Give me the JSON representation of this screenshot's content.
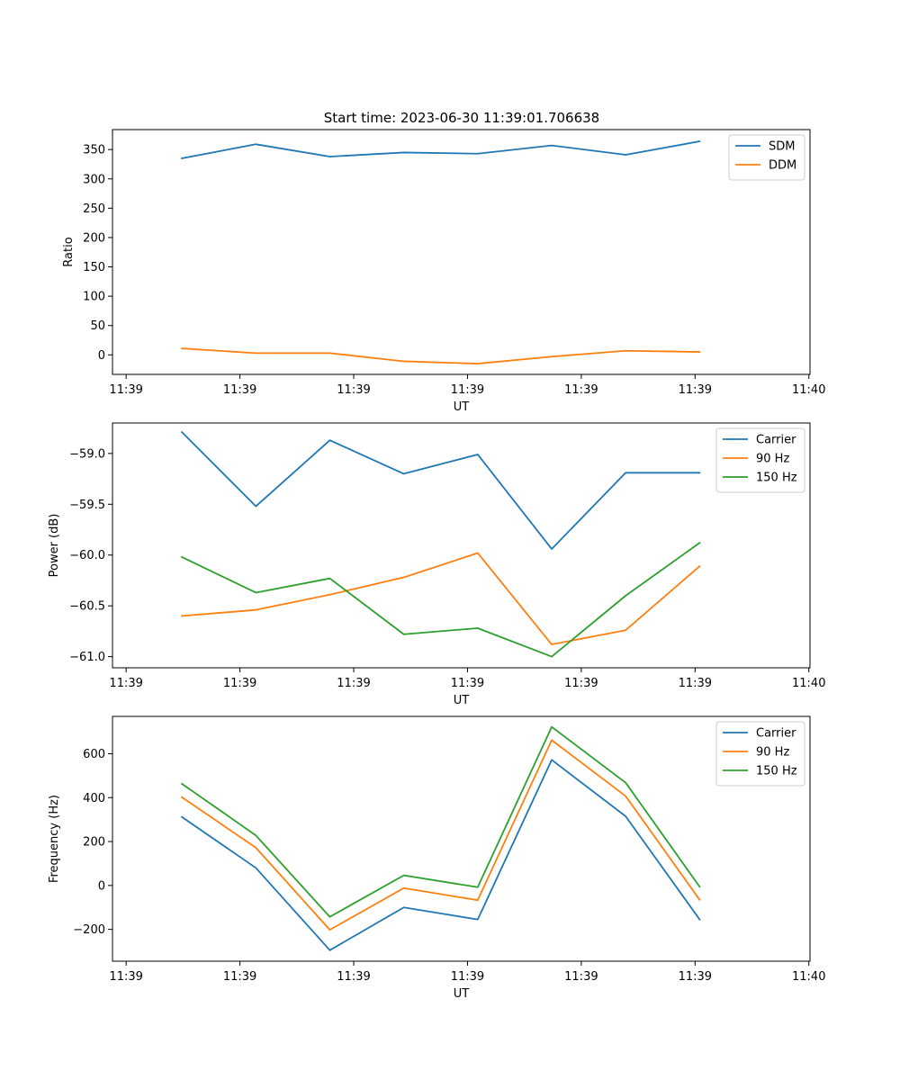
{
  "figure": {
    "title": "Start time: 2023-06-30 11:39:01.706638"
  },
  "chart_data": [
    {
      "type": "line",
      "title": "Start time: 2023-06-30 11:39:01.706638",
      "xlabel": "UT",
      "ylabel": "Ratio",
      "x_ticks": [
        {
          "s": 0,
          "label": "11:39"
        },
        {
          "s": 10,
          "label": "11:39"
        },
        {
          "s": 20,
          "label": "11:39"
        },
        {
          "s": 30,
          "label": "11:39"
        },
        {
          "s": 40,
          "label": "11:39"
        },
        {
          "s": 50,
          "label": "11:39"
        },
        {
          "s": 60,
          "label": "11:40"
        }
      ],
      "x_seconds": [
        4.9,
        11.4,
        17.9,
        24.4,
        30.9,
        37.4,
        43.9,
        50.4
      ],
      "xlim_seconds": [
        -1.2,
        60.1
      ],
      "y_ticks": [
        0,
        50,
        100,
        150,
        200,
        250,
        300,
        350
      ],
      "ylim": [
        -33.3,
        384
      ],
      "legend": "top-right",
      "series": [
        {
          "name": "SDM",
          "color": "#1f77b4",
          "values": [
            335,
            359,
            338,
            345,
            343,
            357,
            341,
            364
          ]
        },
        {
          "name": "DDM",
          "color": "#ff7f0e",
          "values": [
            11,
            3,
            3,
            -11,
            -15,
            -3,
            7,
            5
          ]
        }
      ]
    },
    {
      "type": "line",
      "xlabel": "UT",
      "ylabel": "Power (dB)",
      "x_ticks": [
        {
          "s": 0,
          "label": "11:39"
        },
        {
          "s": 10,
          "label": "11:39"
        },
        {
          "s": 20,
          "label": "11:39"
        },
        {
          "s": 30,
          "label": "11:39"
        },
        {
          "s": 40,
          "label": "11:39"
        },
        {
          "s": 50,
          "label": "11:39"
        },
        {
          "s": 60,
          "label": "11:40"
        }
      ],
      "x_seconds": [
        4.9,
        11.4,
        17.9,
        24.4,
        30.9,
        37.4,
        43.9,
        50.4
      ],
      "xlim_seconds": [
        -1.2,
        60.1
      ],
      "y_ticks": [
        -61.0,
        -60.5,
        -60.0,
        -59.5,
        -59.0
      ],
      "y_tick_labels": [
        "−61.0",
        "−60.5",
        "−60.0",
        "−59.5",
        "−59.0"
      ],
      "ylim": [
        -61.11,
        -58.7
      ],
      "legend": "top-right",
      "series": [
        {
          "name": "Carrier",
          "color": "#1f77b4",
          "values": [
            -58.79,
            -59.52,
            -58.87,
            -59.2,
            -59.01,
            -59.94,
            -59.19,
            -59.19
          ]
        },
        {
          "name": "90 Hz",
          "color": "#ff7f0e",
          "values": [
            -60.6,
            -60.54,
            -60.39,
            -60.22,
            -59.98,
            -60.88,
            -60.74,
            -60.11
          ]
        },
        {
          "name": "150 Hz",
          "color": "#2ca02c",
          "values": [
            -60.02,
            -60.37,
            -60.23,
            -60.78,
            -60.72,
            -61.0,
            -60.4,
            -59.88
          ]
        }
      ]
    },
    {
      "type": "line",
      "xlabel": "UT",
      "ylabel": "Frequency (Hz)",
      "x_ticks": [
        {
          "s": 0,
          "label": "11:39"
        },
        {
          "s": 10,
          "label": "11:39"
        },
        {
          "s": 20,
          "label": "11:39"
        },
        {
          "s": 30,
          "label": "11:39"
        },
        {
          "s": 40,
          "label": "11:39"
        },
        {
          "s": 50,
          "label": "11:39"
        },
        {
          "s": 60,
          "label": "11:40"
        }
      ],
      "x_seconds": [
        4.9,
        11.4,
        17.9,
        24.4,
        30.9,
        37.4,
        43.9,
        50.4
      ],
      "xlim_seconds": [
        -1.2,
        60.1
      ],
      "y_ticks": [
        -200,
        0,
        200,
        400,
        600
      ],
      "y_tick_labels": [
        "−200",
        "0",
        "200",
        "400",
        "600"
      ],
      "ylim": [
        -345,
        770
      ],
      "legend": "top-right",
      "series": [
        {
          "name": "Carrier",
          "color": "#1f77b4",
          "values": [
            312,
            80,
            -295,
            -100,
            -155,
            572,
            315,
            -155
          ]
        },
        {
          "name": "90 Hz",
          "color": "#ff7f0e",
          "values": [
            402,
            172,
            -202,
            -12,
            -67,
            662,
            407,
            -65
          ]
        },
        {
          "name": "150 Hz",
          "color": "#2ca02c",
          "values": [
            463,
            228,
            -143,
            46,
            -8,
            722,
            468,
            -6
          ]
        }
      ]
    }
  ]
}
